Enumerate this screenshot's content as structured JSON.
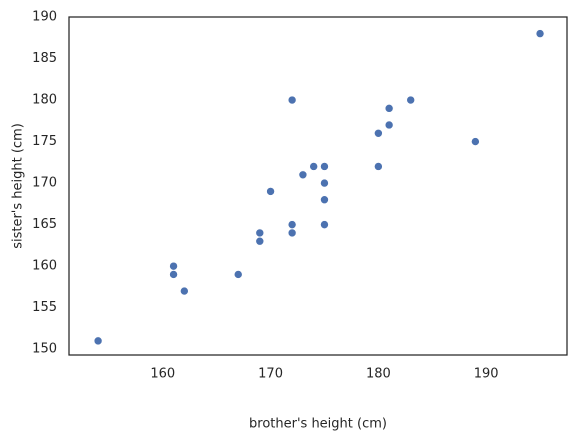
{
  "chart_data": {
    "type": "scatter",
    "xlabel": "brother's height (cm)",
    "ylabel": "sister's height (cm)",
    "color": "#4c72b0",
    "x": [
      154,
      161,
      161,
      162,
      167,
      169,
      169,
      170,
      172,
      172,
      172,
      173,
      174,
      175,
      175,
      175,
      175,
      180,
      180,
      181,
      181,
      183,
      189,
      195
    ],
    "y": [
      151,
      160,
      159,
      157,
      159,
      164,
      163,
      169,
      180,
      165,
      164,
      171,
      172,
      172,
      170,
      168,
      165,
      176,
      172,
      179,
      177,
      180,
      175,
      188
    ],
    "xlim": [
      151.3,
      197.5
    ],
    "ylim": [
      149.3,
      190
    ],
    "xticks": [
      160,
      170,
      180,
      190
    ],
    "yticks": [
      150,
      155,
      160,
      165,
      170,
      175,
      180,
      185,
      190
    ],
    "grid": false
  }
}
